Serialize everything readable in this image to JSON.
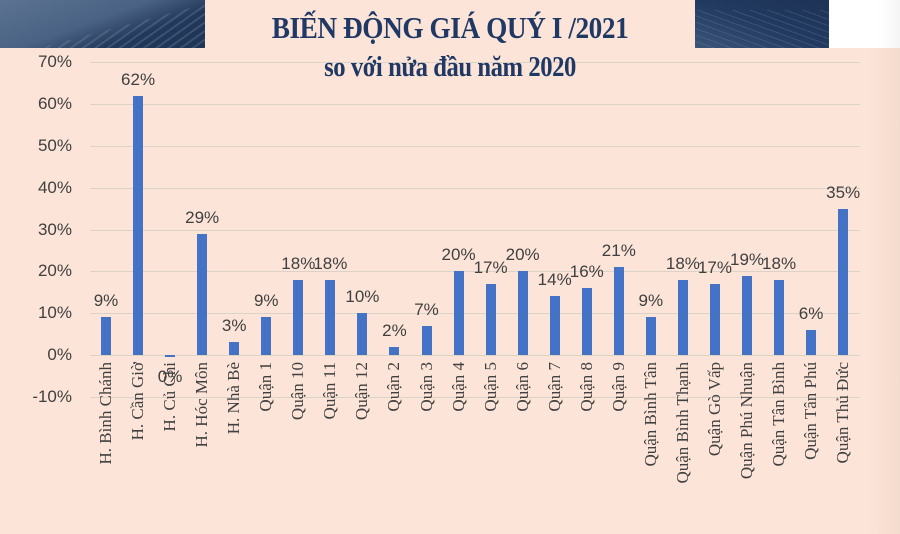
{
  "header": {
    "title_line1": "BIẾN ĐỘNG GIÁ QUÝ I /2021",
    "title_line2": "so với nửa đầu năm 2020"
  },
  "colors": {
    "background": "#fce4d8",
    "bar": "#4472c4",
    "title": "#1f3864",
    "text": "#404040",
    "grid": "#dcd3c8"
  },
  "chart_data": {
    "type": "bar",
    "title": "BIẾN ĐỘNG GIÁ QUÝ I /2021 so với nửa đầu năm 2020",
    "xlabel": "",
    "ylabel": "",
    "ylim": [
      -0.1,
      0.7
    ],
    "yticks": [
      "70%",
      "60%",
      "50%",
      "40%",
      "30%",
      "20%",
      "10%",
      "0%",
      "-10%"
    ],
    "grid": true,
    "legend": null,
    "categories": [
      "H. Bình Chánh",
      "H. Cần Giờ",
      "H. Củ Chi",
      "H. Hóc Môn",
      "H. Nhà Bè",
      "Quận 1",
      "Quận 10",
      "Quận 11",
      "Quận 12",
      "Quận 2",
      "Quận 3",
      "Quận 4",
      "Quận 5",
      "Quận 6",
      "Quận 7",
      "Quận 8",
      "Quận 9",
      "Quận Bình Tân",
      "Quận Bình Thạnh",
      "Quận Gò Vấp",
      "Quận Phú Nhuận",
      "Quận Tân Bình",
      "Quận Tân Phú",
      "Quận Thủ Đức"
    ],
    "values": [
      0.09,
      0.62,
      -0.003,
      0.29,
      0.03,
      0.09,
      0.18,
      0.18,
      0.1,
      0.02,
      0.07,
      0.2,
      0.17,
      0.2,
      0.14,
      0.16,
      0.21,
      0.09,
      0.18,
      0.17,
      0.19,
      0.18,
      0.06,
      0.35
    ],
    "data_labels": [
      "9%",
      "62%",
      "0%",
      "29%",
      "3%",
      "9%",
      "18%",
      "18%",
      "10%",
      "2%",
      "7%",
      "20%",
      "17%",
      "20%",
      "14%",
      "16%",
      "21%",
      "9%",
      "18%",
      "17%",
      "19%",
      "18%",
      "6%",
      "35%"
    ]
  }
}
